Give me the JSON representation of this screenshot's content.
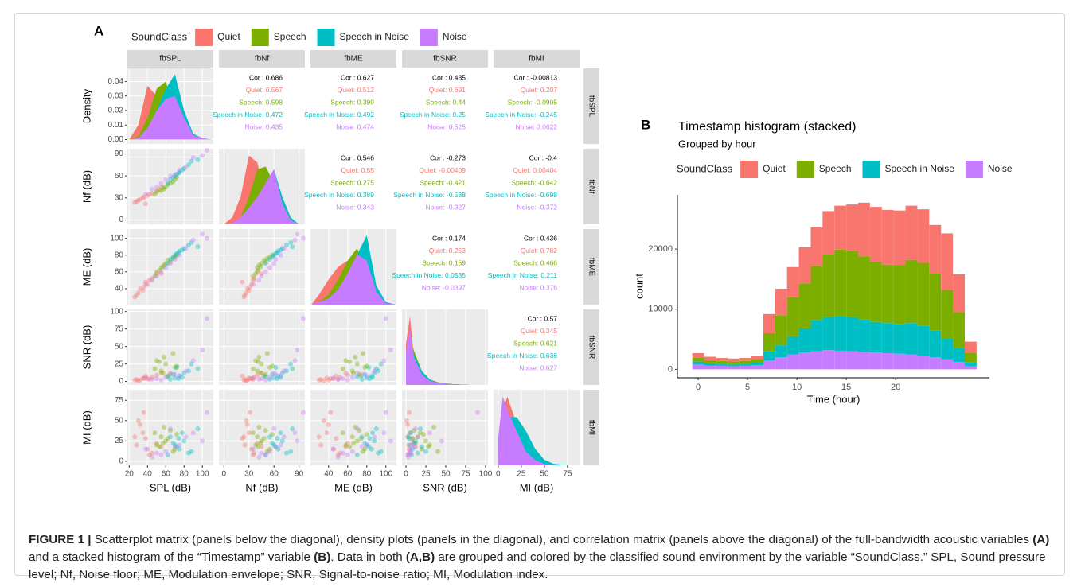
{
  "chart_data": [
    {
      "type": "scatter-matrix",
      "panel_label": "A",
      "legend_title": "SoundClass",
      "density_label": "Density",
      "density_yticks": [
        {
          "value": 0,
          "label": "0.00"
        },
        {
          "value": 0.01,
          "label": "0.01"
        },
        {
          "value": 0.02,
          "label": "0.02"
        },
        {
          "value": 0.03,
          "label": "0.03"
        },
        {
          "value": 0.04,
          "label": "0.04"
        }
      ],
      "variables": [
        {
          "strip": "fbSPL",
          "axis_label": "SPL (dB)",
          "lim": [
            18,
            112
          ],
          "ticks": [
            20,
            40,
            60,
            80,
            100
          ],
          "density_x": [
            20,
            30,
            40,
            50,
            60,
            70,
            80,
            90,
            100,
            110
          ],
          "density_ylim": [
            -0.003,
            0.049
          ]
        },
        {
          "strip": "fbNf",
          "axis_label": "Nf (dB)",
          "lim": [
            -6,
            97
          ],
          "ticks": [
            0,
            30,
            60,
            90
          ],
          "density_x": [
            0,
            10,
            20,
            30,
            40,
            50,
            60,
            70,
            80,
            90
          ],
          "density_ylim": [
            0,
            0.055
          ]
        },
        {
          "strip": "fbME",
          "axis_label": "ME (dB)",
          "lim": [
            21,
            111
          ],
          "ticks": [
            40,
            60,
            80,
            100
          ],
          "density_x": [
            22,
            30,
            40,
            50,
            60,
            70,
            80,
            90,
            100,
            110
          ],
          "density_ylim": [
            0,
            0.06
          ]
        },
        {
          "strip": "fbSNR",
          "axis_label": "SNR (dB)",
          "lim": [
            -5,
            103
          ],
          "ticks": [
            0,
            25,
            50,
            75,
            100
          ],
          "density_x": [
            0,
            5,
            10,
            20,
            30,
            40,
            60,
            80,
            100
          ],
          "density_ylim": [
            0,
            0.11
          ]
        },
        {
          "strip": "fbMI",
          "axis_label": "MI (dB)",
          "lim": [
            -5,
            88
          ],
          "ticks": [
            0,
            25,
            50,
            75
          ],
          "density_x": [
            0,
            5,
            10,
            20,
            30,
            40,
            50,
            60,
            75,
            85
          ],
          "density_ylim": [
            0,
            0.055
          ]
        }
      ],
      "series": [
        {
          "name": "Quiet",
          "color": "#F8766D",
          "observations": [
            [
              28,
              25,
              32,
              3,
              20
            ],
            [
              35,
              30,
              38,
              5,
              35
            ],
            [
              40,
              33,
              45,
              4,
              15
            ],
            [
              32,
              28,
              40,
              2,
              45
            ],
            [
              45,
              36,
              52,
              6,
              10
            ],
            [
              38,
              22,
              48,
              8,
              28
            ],
            [
              30,
              27,
              35,
              1,
              50
            ],
            [
              50,
              40,
              60,
              9,
              22
            ],
            [
              42,
              35,
              50,
              3,
              8
            ],
            [
              26,
              24,
              30,
              2,
              30
            ],
            [
              55,
              45,
              58,
              12,
              18
            ],
            [
              36,
              31,
              42,
              4,
              60
            ]
          ],
          "density": [
            [
              0,
              0.01,
              0.037,
              0.03,
              0.025,
              0.012,
              0.003,
              0.001,
              0,
              0
            ],
            [
              0,
              0.005,
              0.02,
              0.05,
              0.045,
              0.02,
              0.01,
              0.004,
              0,
              0
            ],
            [
              0,
              0.008,
              0.02,
              0.03,
              0.035,
              0.015,
              0.003,
              0,
              0,
              0
            ],
            [
              0.06,
              0.1,
              0.04,
              0.01,
              0.004,
              0.002,
              0.001,
              0,
              0
            ],
            [
              0.01,
              0.04,
              0.05,
              0.03,
              0.015,
              0.006,
              0.002,
              0.001,
              0,
              0
            ]
          ]
        },
        {
          "name": "Speech",
          "color": "#7CAE00",
          "observations": [
            [
              55,
              40,
              65,
              15,
              30
            ],
            [
              60,
              45,
              70,
              25,
              25
            ],
            [
              65,
              50,
              72,
              10,
              38
            ],
            [
              50,
              38,
              58,
              30,
              20
            ],
            [
              70,
              55,
              78,
              20,
              15
            ],
            [
              58,
              42,
              68,
              35,
              42
            ],
            [
              62,
              48,
              74,
              8,
              28
            ],
            [
              48,
              35,
              55,
              18,
              35
            ],
            [
              68,
              52,
              76,
              40,
              12
            ],
            [
              57,
              44,
              66,
              12,
              22
            ],
            [
              72,
              58,
              80,
              22,
              33
            ],
            [
              53,
              41,
              62,
              28,
              18
            ]
          ],
          "density": [
            [
              0,
              0.002,
              0.015,
              0.035,
              0.04,
              0.02,
              0.005,
              0.001,
              0,
              0
            ],
            [
              0,
              0,
              0.005,
              0.02,
              0.04,
              0.042,
              0.03,
              0.01,
              0.002,
              0
            ],
            [
              0,
              0.002,
              0.008,
              0.02,
              0.035,
              0.045,
              0.02,
              0.003,
              0,
              0
            ],
            [
              0.04,
              0.07,
              0.05,
              0.02,
              0.008,
              0.004,
              0.001,
              0,
              0
            ],
            [
              0.005,
              0.02,
              0.03,
              0.035,
              0.025,
              0.01,
              0.004,
              0.001,
              0,
              0
            ]
          ]
        },
        {
          "name": "Speech in Noise",
          "color": "#00BFC4",
          "observations": [
            [
              70,
              60,
              80,
              5,
              20
            ],
            [
              75,
              65,
              85,
              8,
              15
            ],
            [
              80,
              70,
              88,
              12,
              25
            ],
            [
              65,
              55,
              75,
              3,
              30
            ],
            [
              85,
              75,
              92,
              15,
              10
            ],
            [
              72,
              62,
              82,
              20,
              18
            ],
            [
              78,
              68,
              86,
              6,
              35
            ],
            [
              68,
              58,
              78,
              10,
              22
            ],
            [
              88,
              80,
              95,
              25,
              12
            ],
            [
              74,
              64,
              83,
              4,
              28
            ],
            [
              95,
              82,
              90,
              18,
              40
            ],
            [
              62,
              50,
              70,
              7,
              8
            ]
          ],
          "density": [
            [
              0,
              0,
              0.005,
              0.02,
              0.035,
              0.045,
              0.02,
              0.004,
              0.001,
              0
            ],
            [
              0,
              0,
              0.003,
              0.01,
              0.02,
              0.03,
              0.04,
              0.02,
              0.005,
              0
            ],
            [
              0,
              0,
              0.004,
              0.01,
              0.025,
              0.04,
              0.055,
              0.015,
              0.002,
              0
            ],
            [
              0.03,
              0.06,
              0.045,
              0.02,
              0.008,
              0.003,
              0.001,
              0,
              0
            ],
            [
              0.005,
              0.02,
              0.035,
              0.035,
              0.025,
              0.012,
              0.004,
              0.001,
              0,
              0
            ]
          ]
        },
        {
          "name": "Noise",
          "color": "#C77CFF",
          "observations": [
            [
              45,
              42,
              50,
              3,
              5
            ],
            [
              60,
              55,
              65,
              6,
              12
            ],
            [
              75,
              68,
              80,
              8,
              20
            ],
            [
              90,
              85,
              98,
              30,
              35
            ],
            [
              55,
              50,
              60,
              2,
              8
            ],
            [
              100,
              88,
              105,
              45,
              25
            ],
            [
              65,
              60,
              70,
              12,
              40
            ],
            [
              38,
              35,
              45,
              5,
              15
            ],
            [
              82,
              72,
              88,
              15,
              30
            ],
            [
              105,
              95,
              100,
              90,
              60
            ],
            [
              50,
              45,
              55,
              4,
              10
            ],
            [
              70,
              62,
              75,
              10,
              18
            ]
          ],
          "density": [
            [
              0,
              0.001,
              0.008,
              0.02,
              0.028,
              0.03,
              0.015,
              0.003,
              0.001,
              0
            ],
            [
              0,
              0.001,
              0.005,
              0.012,
              0.02,
              0.03,
              0.04,
              0.015,
              0.003,
              0
            ],
            [
              0,
              0.002,
              0.005,
              0.012,
              0.025,
              0.04,
              0.035,
              0.01,
              0.001,
              0
            ],
            [
              0.05,
              0.08,
              0.04,
              0.015,
              0.006,
              0.003,
              0.001,
              0,
              0
            ],
            [
              0.02,
              0.05,
              0.04,
              0.025,
              0.01,
              0.004,
              0.001,
              0,
              0,
              0
            ]
          ]
        }
      ],
      "correlations": [
        [
          "Cor : 0.686",
          "Quiet: 0.567",
          "Speech: 0.598",
          "Speech in Noise: 0.472",
          "Noise: 0.435"
        ],
        [
          "Cor : 0.627",
          "Quiet: 0.512",
          "Speech: 0.399",
          "Speech in Noise: 0.492",
          "Noise: 0.474"
        ],
        [
          "Cor : 0.435",
          "Quiet: 0.691",
          "Speech: 0.44",
          "Speech in Noise: 0.25",
          "Noise: 0.525"
        ],
        [
          "Cor : -0.00813",
          "Quiet: 0.207",
          "Speech: -0.0905",
          "Speech in Noise: -0.245",
          "Noise: 0.0622"
        ],
        [
          "Cor : 0.546",
          "Quiet: 0.55",
          "Speech: 0.275",
          "Speech in Noise: 0.389",
          "Noise: 0.343"
        ],
        [
          "Cor : -0.273",
          "Quiet: -0.00409",
          "Speech: -0.421",
          "Speech in Noise: -0.588",
          "Noise: -0.327"
        ],
        [
          "Cor : -0.4",
          "Quiet: 0.00404",
          "Speech: -0.642",
          "Speech in Noise: -0.698",
          "Noise: -0.372"
        ],
        [
          "Cor : 0.174",
          "Quiet: 0.253",
          "Speech: 0.159",
          "Speech in Noise: 0.0535",
          "Noise: -0.0397"
        ],
        [
          "Cor : 0.436",
          "Quiet: 0.782",
          "Speech: 0.466",
          "Speech in Noise: 0.211",
          "Noise: 0.376"
        ],
        [
          "Cor : 0.57",
          "Quiet: 0.345",
          "Speech: 0.621",
          "Speech in Noise: 0.636",
          "Noise: 0.627"
        ]
      ]
    },
    {
      "type": "histogram",
      "panel_label": "B",
      "title": "Timestamp histogram (stacked)",
      "subtitle": "Grouped by hour",
      "legend_title": "SoundClass",
      "xlabel": "Time (hour)",
      "ylabel": "count",
      "stacked": true,
      "bins": [
        -0.6,
        0.6,
        1.8,
        3.0,
        4.2,
        5.4,
        6.6,
        7.8,
        9.0,
        10.2,
        11.4,
        12.6,
        13.8,
        15.0,
        16.2,
        17.4,
        18.6,
        19.8,
        21.0,
        22.2,
        23.4,
        24.6,
        25.8,
        27.0,
        28.2
      ],
      "xlim": [
        -2.1,
        29.5
      ],
      "xticks": [
        0,
        5,
        10,
        15,
        20
      ],
      "ylim": [
        -1400,
        29000
      ],
      "yticks": [
        0,
        10000,
        20000
      ],
      "series": [
        {
          "name": "Quiet",
          "color": "#F8766D",
          "values": [
            700,
            600,
            500,
            500,
            500,
            600,
            3200,
            4400,
            5000,
            6000,
            6400,
            7100,
            7300,
            7700,
            8900,
            9100,
            9100,
            9100,
            9000,
            8900,
            8000,
            9400,
            6300,
            1900
          ]
        },
        {
          "name": "Speech",
          "color": "#7CAE00",
          "values": [
            700,
            500,
            500,
            500,
            500,
            600,
            3000,
            5000,
            6500,
            7500,
            9000,
            10500,
            11000,
            11000,
            10500,
            10000,
            9700,
            9800,
            10500,
            10400,
            9500,
            8000,
            6000,
            1500
          ]
        },
        {
          "name": "Speech in Noise",
          "color": "#00BFC4",
          "values": [
            500,
            400,
            300,
            300,
            300,
            400,
            1500,
            2000,
            3000,
            4000,
            5200,
            5500,
            5800,
            5700,
            5400,
            5100,
            5000,
            4900,
            5200,
            5000,
            4500,
            3500,
            2300,
            700
          ]
        },
        {
          "name": "Noise",
          "color": "#C77CFF",
          "values": [
            800,
            600,
            600,
            500,
            600,
            700,
            1500,
            2000,
            2500,
            2800,
            3000,
            3200,
            3100,
            3000,
            2900,
            2800,
            2700,
            2600,
            2500,
            2300,
            2000,
            1700,
            1200,
            500
          ]
        }
      ]
    }
  ],
  "caption": [
    {
      "text": "FIGURE 1 |",
      "bold": true
    },
    {
      "text": " Scatterplot matrix (panels below the diagonal), density plots (panels in the diagonal), and correlation matrix (panels above the diagonal) of the full-bandwidth acoustic variables ",
      "bold": false
    },
    {
      "text": "(A)",
      "bold": true
    },
    {
      "text": " and a stacked histogram of the “Timestamp” variable ",
      "bold": false
    },
    {
      "text": "(B)",
      "bold": true
    },
    {
      "text": ". Data in both ",
      "bold": false
    },
    {
      "text": "(A,B)",
      "bold": true
    },
    {
      "text": " are grouped and colored by the classified sound environment by the variable “SoundClass.” SPL, Sound pressure level; Nf, Noise floor; ME, Modulation envelope; SNR, Signal-to-noise ratio; MI, Modulation index.",
      "bold": false
    }
  ]
}
